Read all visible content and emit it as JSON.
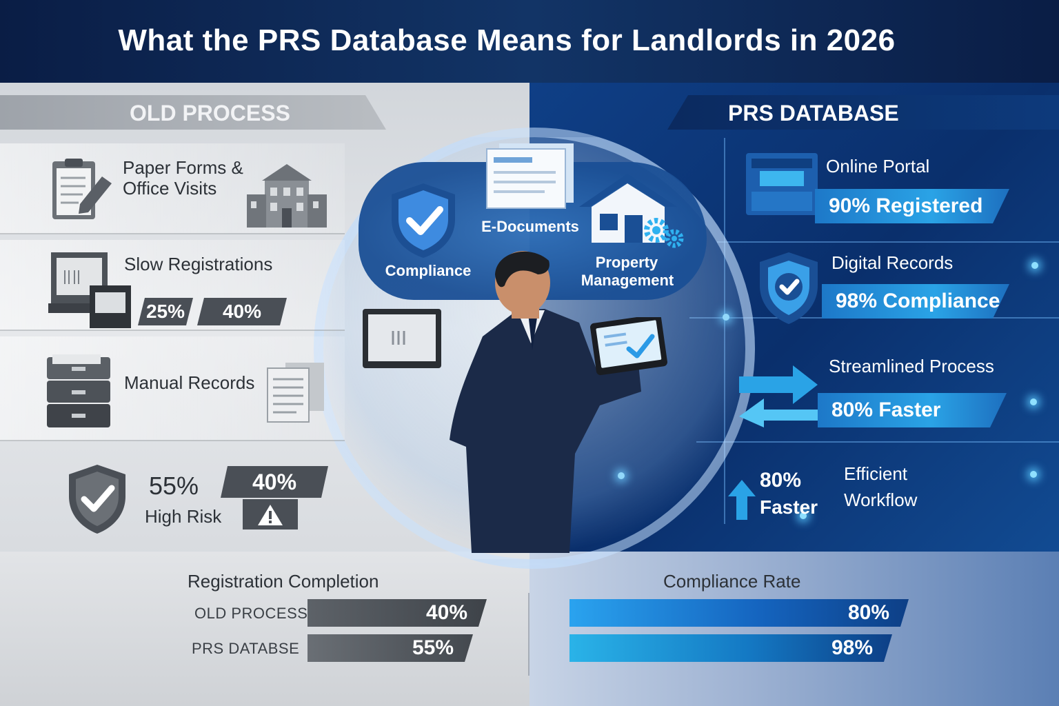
{
  "title": "What the PRS Database Means for Landlords in 2026",
  "old_process": {
    "heading": "OLD PROCESS",
    "items": [
      {
        "label_line1": "Paper Forms &",
        "label_line2": "Office Visits",
        "icon": "clipboard-pencil-icon",
        "icon2": "office-building-icon"
      },
      {
        "label": "Slow Registrations",
        "icon": "computer-printer-icon",
        "stat1": "25%",
        "stat2": "40%"
      },
      {
        "label": "Manual Records",
        "icon": "filing-cabinet-icon",
        "icon2": "document-stack-icon"
      }
    ],
    "risk": {
      "icon": "shield-check-icon",
      "percent": "55%",
      "label": "High Risk",
      "badge": "40%",
      "warning_icon": "warning-triangle-icon"
    }
  },
  "center": {
    "labels": [
      "Compliance",
      "E-Documents",
      "Property",
      "Management"
    ],
    "icons": [
      "shield-check-icon",
      "documents-icon",
      "house-icon",
      "gears-icon",
      "laptop-icon",
      "tablet-icon",
      "businessman-figure"
    ]
  },
  "prs_database": {
    "heading": "PRS DATABASE",
    "items": [
      {
        "label": "Online Portal",
        "stat": "90% Registered",
        "icon": "web-portal-icon"
      },
      {
        "label": "Digital Records",
        "stat": "98% Compliance",
        "icon": "shield-check-icon"
      },
      {
        "label": "Streamlined Process",
        "stat": "80% Faster",
        "icon": "double-arrow-icon"
      }
    ],
    "workflow": {
      "stat_line1": "80%",
      "stat_line2": "Faster",
      "label_line1": "Efficient",
      "label_line2": "Workflow",
      "icon": "up-arrow-icon"
    }
  },
  "bottom": {
    "registration": {
      "title": "Registration Completion",
      "rows": [
        {
          "label": "OLD PROCESS",
          "value": "40%"
        },
        {
          "label": "PRS DATABSE",
          "value": "55%"
        }
      ]
    },
    "compliance": {
      "title": "Compliance Rate",
      "rows": [
        {
          "value": "80%"
        },
        {
          "value": "98%"
        }
      ]
    }
  },
  "colors": {
    "dark_navy": "#0c1f44",
    "accent_blue": "#1d78c8",
    "gray_panel": "#4a4f56"
  }
}
